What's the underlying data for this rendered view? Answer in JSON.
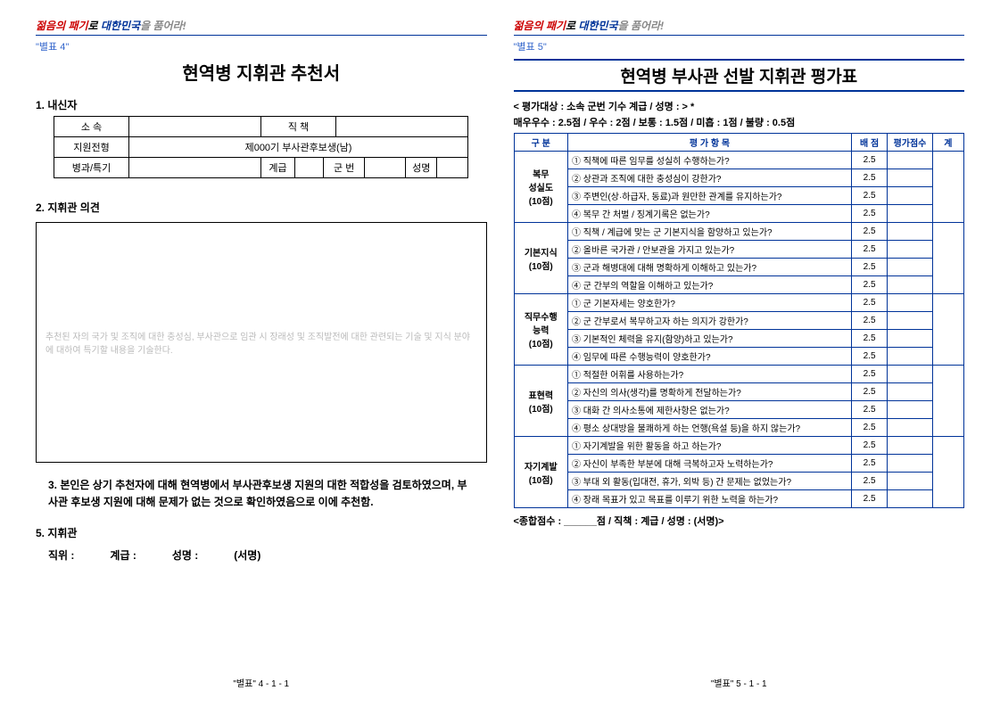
{
  "slogan": {
    "red": "젊음의 패기",
    "mid": "로 ",
    "blue": "대한민국",
    "gray": "을 품어라!"
  },
  "left": {
    "annex": "\"별표 4\"",
    "title": "현역병 지휘관 추천서",
    "sec1": "1. 내신자",
    "form": {
      "r1c1": "소 속",
      "r1c3": "직 책",
      "r2c1": "지원전형",
      "r2c2": "제000기 부사관후보생(남)",
      "r3c1": "병과/특기",
      "r3c2": "계급",
      "r3c3": "군 번",
      "r3c4": "성명"
    },
    "sec2": "2. 지휘관 의견",
    "opinion_placeholder": "추천된 자의 국가 및 조직에 대한 충성심, 부사관으로 임관 시 장래성 및 조직발전에 대한 관련되는 기술 및 지식 분야에 대하여 특기할 내용을 기술한다.",
    "sec3": "3. 본인은 상기 추천자에 대해 현역병에서 부사관후보생 지원의 대한 적합성을 검토하였으며, 부사관 후보생 지원에 대해 문제가 없는 것으로 확인하였음으로 이에 추천함.",
    "sec5": "5. 지휘관",
    "sig": {
      "a": "직위 :",
      "b": "계급 :",
      "c": "성명 :",
      "d": "(서명)"
    },
    "footer": "\"별표\" 4 - 1 - 1"
  },
  "right": {
    "annex": "\"별표 5\"",
    "title": "현역병 부사관 선발 지휘관 평가표",
    "subhead": "< 평가대상 : 소속           군번        기수        계급 / 성명 :                > *",
    "scoring": "매우우수 : 2.5점 / 우수 : 2점 / 보통 : 1.5점 / 미흡 : 1점 / 불량 : 0.5점",
    "cols": {
      "c1": "구 분",
      "c2": "평 가 항 목",
      "c3": "배 점",
      "c4": "평가점수",
      "c5": "계"
    },
    "cats": [
      {
        "name": "복무\n성실도\n(10점)",
        "items": [
          "① 직책에 따른 임무를 성실히 수행하는가?",
          "② 상관과 조직에 대한 충성심이 강한가?",
          "③ 주변인(상·하급자, 동료)과 원만한 관계를 유지하는가?",
          "④ 복무 간 처벌 / 징계기록은 없는가?"
        ]
      },
      {
        "name": "기본지식\n(10점)",
        "items": [
          "① 직책 / 계급에 맞는 군 기본지식을 함양하고 있는가?",
          "② 올바른 국가관 / 안보관을 가지고 있는가?",
          "③ 군과 해병대에 대해 명확하게 이해하고 있는가?",
          "④ 군 간부의 역할을 이해하고 있는가?"
        ]
      },
      {
        "name": "직무수행\n능력\n(10점)",
        "items": [
          "① 군 기본자세는 양호한가?",
          "② 군 간부로서 복무하고자 하는 의지가 강한가?",
          "③ 기본적인 체력을 유지(함양)하고 있는가?",
          "④ 임무에 따른 수행능력이 양호한가?"
        ]
      },
      {
        "name": "표현력\n(10점)",
        "items": [
          "① 적절한 어휘를 사용하는가?",
          "② 자신의 의사(생각)를 명확하게 전달하는가?",
          "③ 대화 간 의사소통에 제한사항은 없는가?",
          "④ 평소 상대방을 불쾌하게 하는 언행(욕설 등)을 하지 않는가?"
        ]
      },
      {
        "name": "자기계발\n(10점)",
        "items": [
          "① 자기계발을 위한 활동을 하고 하는가?",
          "② 자신이 부족한 부분에 대해 극복하고자 노력하는가?",
          "③ 부대 외 활동(입대전, 휴가, 외박 등) 간 문제는 없었는가?",
          "④ 장래 목표가 있고 목표를 이루기 위한 노력을 하는가?"
        ]
      }
    ],
    "score": "2.5",
    "total": "<종합점수 :  ______점   /  직책 :        계급 / 성명 :            (서명)>",
    "footer": "\"별표\" 5 - 1 - 1"
  }
}
